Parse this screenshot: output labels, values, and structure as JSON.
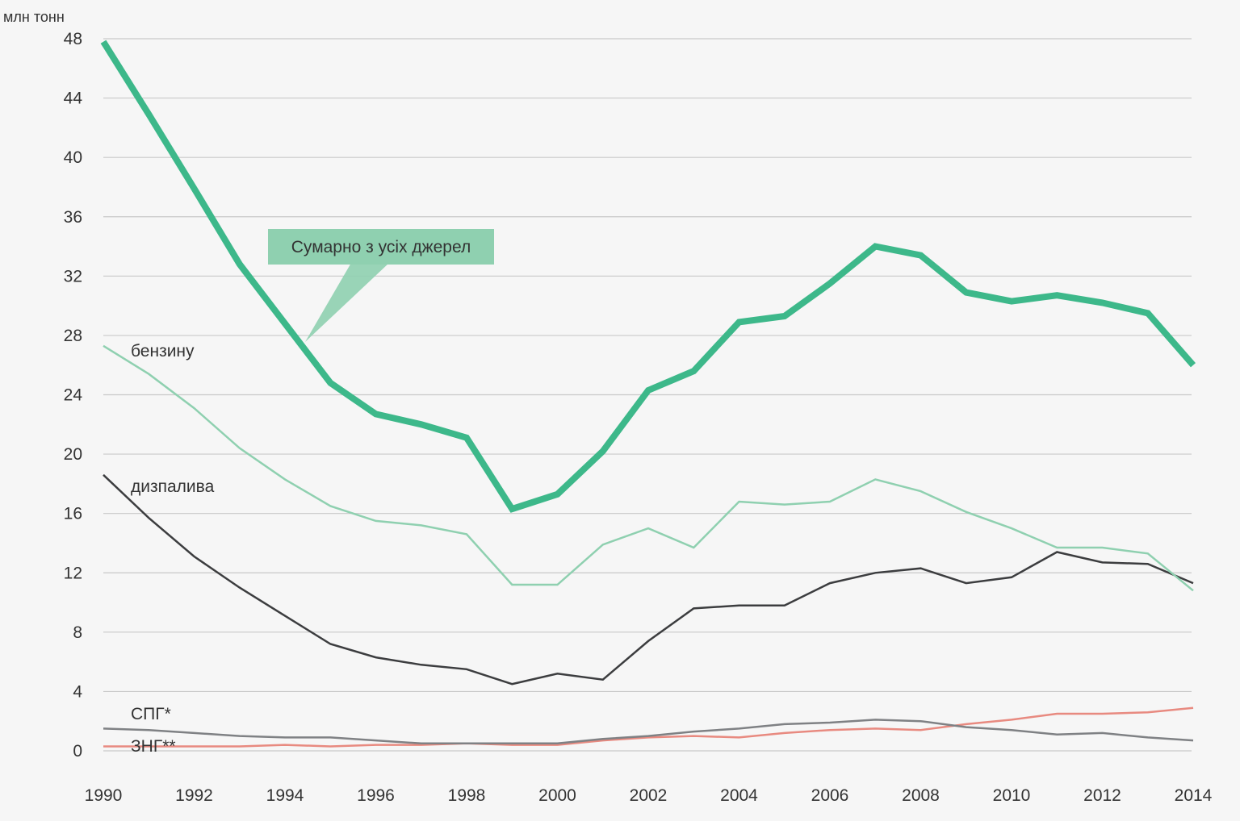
{
  "chart_data": {
    "type": "line",
    "ylabel": "млн тонн",
    "ylim": [
      0,
      48
    ],
    "yticks": [
      0,
      4,
      8,
      12,
      16,
      20,
      24,
      28,
      32,
      36,
      40,
      44,
      48
    ],
    "xlim": [
      1990,
      2014
    ],
    "xticks": [
      1990,
      1992,
      1994,
      1996,
      1998,
      2000,
      2002,
      2004,
      2006,
      2008,
      2010,
      2012,
      2014
    ],
    "grid": true,
    "x": [
      1990,
      1991,
      1992,
      1993,
      1994,
      1995,
      1996,
      1997,
      1998,
      1999,
      2000,
      2001,
      2002,
      2003,
      2004,
      2005,
      2006,
      2007,
      2008,
      2009,
      2010,
      2011,
      2012,
      2013,
      2014
    ],
    "series": [
      {
        "key": "total",
        "name": "Сумарно з усіх джерел",
        "color": "#3db88a",
        "values": [
          47.8,
          42.9,
          37.9,
          32.8,
          28.8,
          24.8,
          22.7,
          22.0,
          21.1,
          16.3,
          17.3,
          20.2,
          24.3,
          25.6,
          28.9,
          29.3,
          31.5,
          34.0,
          33.4,
          30.9,
          30.3,
          30.7,
          30.2,
          29.5,
          26.0
        ]
      },
      {
        "key": "petrol",
        "name": "бензину",
        "color": "#8fd0b0",
        "values": [
          27.3,
          25.4,
          23.1,
          20.4,
          18.3,
          16.5,
          15.5,
          15.2,
          14.6,
          11.2,
          11.2,
          13.9,
          15.0,
          13.7,
          16.8,
          16.6,
          16.8,
          18.3,
          17.5,
          16.1,
          15.0,
          13.7,
          13.7,
          13.3,
          10.8
        ]
      },
      {
        "key": "diesel",
        "name": "дизпалива",
        "color": "#3c3d3f",
        "values": [
          18.6,
          15.7,
          13.1,
          11.0,
          9.1,
          7.2,
          6.3,
          5.8,
          5.5,
          4.5,
          5.2,
          4.8,
          7.4,
          9.6,
          9.8,
          9.8,
          11.3,
          12.0,
          12.3,
          11.3,
          11.7,
          13.4,
          12.7,
          12.6,
          11.3
        ]
      },
      {
        "key": "lpg",
        "name": "СПГ*",
        "color": "#7f8184",
        "values": [
          1.5,
          1.4,
          1.2,
          1.0,
          0.9,
          0.9,
          0.7,
          0.5,
          0.5,
          0.5,
          0.5,
          0.8,
          1.0,
          1.3,
          1.5,
          1.8,
          1.9,
          2.1,
          2.0,
          1.6,
          1.4,
          1.1,
          1.2,
          0.9,
          0.7
        ]
      },
      {
        "key": "cng",
        "name": "ЗНГ**",
        "color": "#e88a80",
        "values": [
          0.3,
          0.3,
          0.3,
          0.3,
          0.4,
          0.3,
          0.4,
          0.4,
          0.5,
          0.4,
          0.4,
          0.7,
          0.9,
          1.0,
          0.9,
          1.2,
          1.4,
          1.5,
          1.4,
          1.8,
          2.1,
          2.5,
          2.5,
          2.6,
          2.9
        ]
      }
    ]
  }
}
